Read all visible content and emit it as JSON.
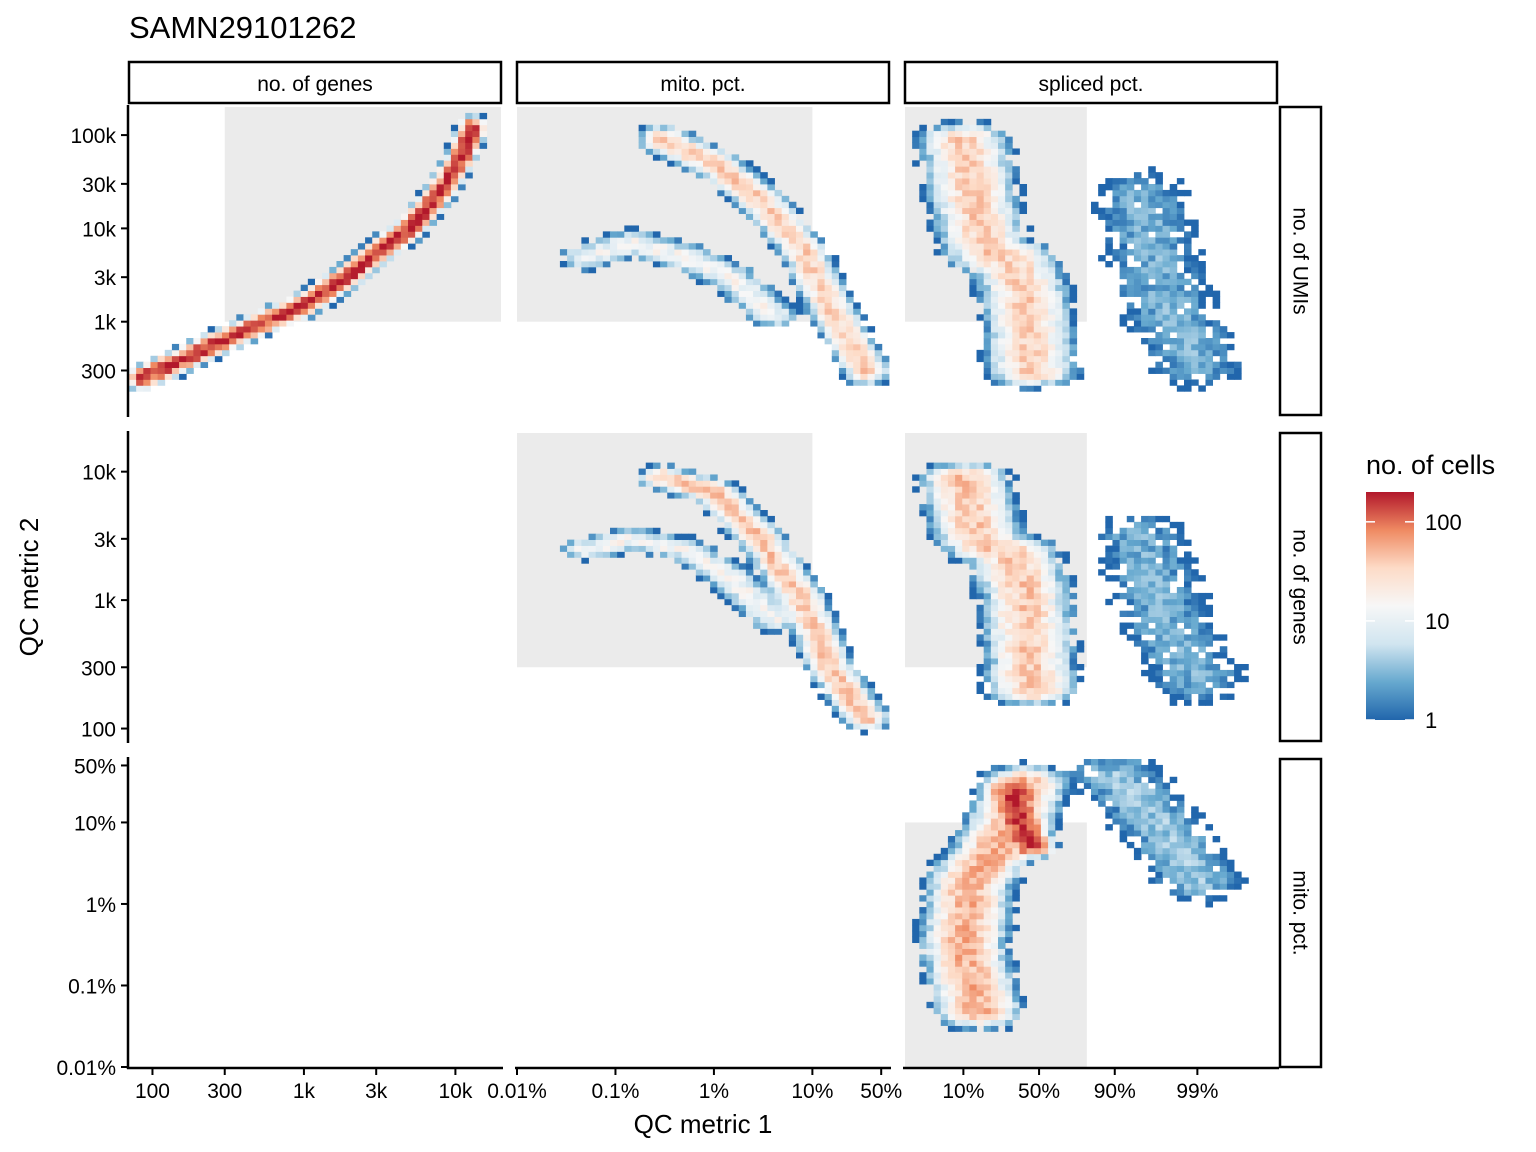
{
  "title": "SAMN29101262",
  "xlabel": "QC metric 1",
  "ylabel": "QC metric 2",
  "legend": {
    "title": "no. of cells",
    "ticks": [
      "100",
      "10",
      "1"
    ],
    "scale": "log",
    "range": [
      1,
      200
    ],
    "colors": [
      "#2166ac",
      "#67a9cf",
      "#d1e5f0",
      "#f7f7f7",
      "#fddbc7",
      "#ef8a62",
      "#b2182b"
    ]
  },
  "columns": [
    {
      "label": "no. of genes",
      "scale": "log10",
      "xlim": [
        70,
        20000
      ],
      "ticks": [
        "100",
        "300",
        "1k",
        "3k",
        "10k"
      ]
    },
    {
      "label": "mito. pct.",
      "scale": "log10",
      "xlim": [
        0.01,
        60
      ],
      "ticks": [
        "0.01%",
        "0.1%",
        "1%",
        "10%",
        "50%"
      ]
    },
    {
      "label": "spliced pct.",
      "scale": "logit",
      "xlim": [
        0.02,
        0.999
      ],
      "ticks": [
        "10%",
        "50%",
        "90%",
        "99%"
      ]
    }
  ],
  "rows": [
    {
      "label": "no. of UMIs",
      "scale": "log10",
      "ylim": [
        100,
        200000
      ],
      "ticks": [
        "100k",
        "30k",
        "10k",
        "3k",
        "1k",
        "300"
      ]
    },
    {
      "label": "no. of genes",
      "scale": "log10",
      "ylim": [
        80,
        20000
      ],
      "ticks": [
        "10k",
        "3k",
        "1k",
        "300",
        "100"
      ]
    },
    {
      "label": "mito. pct.",
      "scale": "log10",
      "ylim": [
        0.01,
        60
      ],
      "ticks": [
        "50%",
        "10%",
        "1%",
        "0.1%",
        "0.01%"
      ]
    }
  ],
  "chart_data": {
    "type": "heatmap",
    "title": "SAMN29101262",
    "xlabel": "QC metric 1",
    "ylabel": "QC metric 2",
    "color_scale": {
      "title": "no. of cells",
      "scale": "log",
      "range": [
        1,
        200
      ],
      "ticks": [
        1,
        10,
        100
      ]
    },
    "panels": [
      {
        "x_metric": "no. of genes",
        "y_metric": "no. of UMIs",
        "filter_region": {
          "x": [
            300,
            20000
          ],
          "y": [
            1000,
            200000
          ]
        },
        "density_ridges": [
          {
            "x": [
              85,
              150,
              300,
              1000,
              2000,
              3000,
              5000,
              8000,
              11000,
              13000
            ],
            "y": [
              250,
              380,
              650,
              1500,
              3200,
              5500,
              10000,
              25000,
              60000,
              120000
            ],
            "peak_count": 200,
            "spread_x": 0.09,
            "spread_y": 0.09
          }
        ]
      },
      {
        "x_metric": "mito. pct.",
        "y_metric": "no. of UMIs",
        "filter_region": {
          "x": [
            0.01,
            10
          ],
          "y": [
            1000,
            200000
          ]
        },
        "density_ridges": [
          {
            "x": [
              0.3,
              1,
              3,
              8,
              15,
              35
            ],
            "y": [
              90000,
              50000,
              20000,
              6000,
              1500,
              300
            ],
            "peak_count": 40,
            "spread_x": 0.16,
            "spread_y": 0.12
          },
          {
            "x": [
              0.05,
              0.15,
              0.5,
              1.5,
              4
            ],
            "y": [
              5000,
              7000,
              5000,
              3000,
              1200
            ],
            "peak_count": 15,
            "spread_x": 0.18,
            "spread_y": 0.12
          }
        ]
      },
      {
        "x_metric": "spliced pct.",
        "y_metric": "no. of UMIs",
        "filter_region": {
          "x": [
            0.02,
            0.8
          ],
          "y": [
            1000,
            200000
          ]
        },
        "density_ridges": [
          {
            "x": [
              0.1,
              0.12,
              0.15,
              0.2,
              0.3,
              0.4,
              0.45
            ],
            "y": [
              90000,
              30000,
              10000,
              5000,
              5000,
              2000,
              300
            ],
            "peak_count": 40,
            "spread_x": 0.3,
            "spread_y": 0.14
          },
          {
            "x": [
              0.95,
              0.97,
              0.98,
              0.99
            ],
            "y": [
              20000,
              3000,
              1000,
              400
            ],
            "peak_count": 3,
            "spread_x": 0.45,
            "spread_y": 0.35
          }
        ]
      },
      {
        "x_metric": "mito. pct.",
        "y_metric": "no. of genes",
        "filter_region": {
          "x": [
            0.01,
            10
          ],
          "y": [
            300,
            20000
          ]
        },
        "density_ridges": [
          {
            "x": [
              0.3,
              1,
              3,
              8,
              15,
              35
            ],
            "y": [
              9000,
              7000,
              3000,
              1000,
              300,
              120
            ],
            "peak_count": 45,
            "spread_x": 0.16,
            "spread_y": 0.1
          },
          {
            "x": [
              0.05,
              0.15,
              0.5,
              1.5,
              4
            ],
            "y": [
              2500,
              3000,
              2500,
              1500,
              700
            ],
            "peak_count": 15,
            "spread_x": 0.18,
            "spread_y": 0.1
          }
        ]
      },
      {
        "x_metric": "spliced pct.",
        "y_metric": "no. of genes",
        "filter_region": {
          "x": [
            0.02,
            0.8
          ],
          "y": [
            300,
            20000
          ]
        },
        "density_ridges": [
          {
            "x": [
              0.1,
              0.12,
              0.15,
              0.2,
              0.3,
              0.4,
              0.45
            ],
            "y": [
              9000,
              5000,
              3000,
              2500,
              2500,
              1200,
              200
            ],
            "peak_count": 45,
            "spread_x": 0.3,
            "spread_y": 0.12
          },
          {
            "x": [
              0.95,
              0.97,
              0.98,
              0.99
            ],
            "y": [
              3000,
              1000,
              500,
              250
            ],
            "peak_count": 3,
            "spread_x": 0.45,
            "spread_y": 0.3
          }
        ]
      },
      {
        "x_metric": "spliced pct.",
        "y_metric": "mito. pct.",
        "filter_region": {
          "x": [
            0.02,
            0.8
          ],
          "y": [
            0.01,
            10
          ]
        },
        "density_ridges": [
          {
            "x": [
              0.15,
              0.1,
              0.12,
              0.2,
              0.3,
              0.4
            ],
            "y": [
              0.05,
              0.3,
              2,
              4,
              10,
              30
            ],
            "peak_count": 60,
            "spread_x": 0.28,
            "spread_y": 0.15
          },
          {
            "x": [
              0.3,
              0.4,
              0.45
            ],
            "y": [
              25,
              8,
              5
            ],
            "peak_count": 150,
            "spread_x": 0.15,
            "spread_y": 0.08
          },
          {
            "x": [
              0.9,
              0.97,
              0.99
            ],
            "y": [
              40,
              10,
              2
            ],
            "peak_count": 4,
            "spread_x": 0.4,
            "spread_y": 0.25
          }
        ]
      }
    ]
  }
}
